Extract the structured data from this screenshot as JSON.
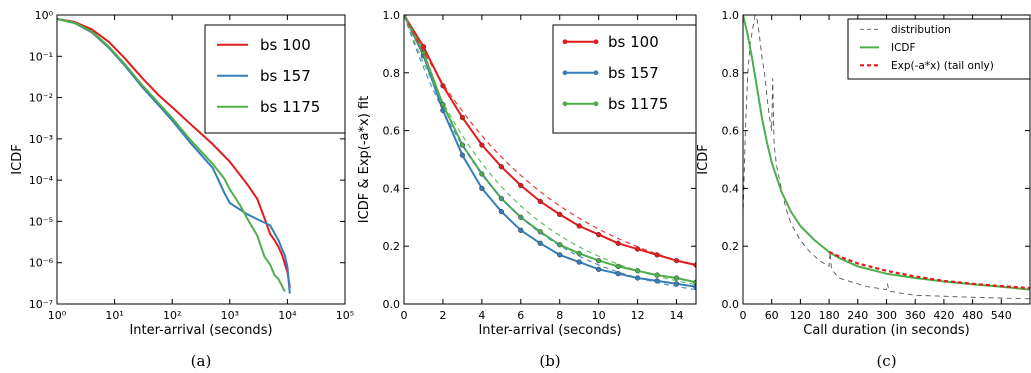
{
  "chart_data": [
    {
      "type": "line",
      "caption": "(a)",
      "xlabel": "Inter-arrival (seconds)",
      "ylabel": "ICDF",
      "xscale": "log",
      "yscale": "log",
      "xlim": [
        1,
        100000
      ],
      "ylim": [
        1e-07,
        1
      ],
      "xticks": [
        {
          "v": 1,
          "t": "10⁰"
        },
        {
          "v": 10,
          "t": "10¹"
        },
        {
          "v": 100,
          "t": "10²"
        },
        {
          "v": 1000,
          "t": "10³"
        },
        {
          "v": 10000,
          "t": "10⁴"
        },
        {
          "v": 100000,
          "t": "10⁵"
        }
      ],
      "yticks": [
        {
          "v": 1e-07,
          "t": "10⁻⁷"
        },
        {
          "v": 1e-06,
          "t": "10⁻⁶"
        },
        {
          "v": 1e-05,
          "t": "10⁻⁵"
        },
        {
          "v": 0.0001,
          "t": "10⁻⁴"
        },
        {
          "v": 0.001,
          "t": "10⁻³"
        },
        {
          "v": 0.01,
          "t": "10⁻²"
        },
        {
          "v": 0.1,
          "t": "10⁻¹"
        },
        {
          "v": 1,
          "t": "10⁰"
        }
      ],
      "legend": "top-right",
      "series": [
        {
          "name": "bs 100",
          "color": "#e41a1c",
          "x": [
            1,
            2,
            4,
            8,
            15,
            30,
            60,
            100,
            200,
            500,
            1000,
            2000,
            3000,
            4000,
            5000,
            6000,
            7000,
            8000,
            10000,
            11000
          ],
          "y": [
            0.8,
            0.68,
            0.45,
            0.22,
            0.09,
            0.03,
            0.011,
            0.0058,
            0.0024,
            0.00075,
            0.00028,
            8e-05,
            3.5e-05,
            1.2e-05,
            5e-06,
            3.5e-06,
            2.4e-06,
            1.6e-06,
            6e-07,
            2.5e-07
          ]
        },
        {
          "name": "bs 157",
          "color": "#377eb8",
          "x": [
            1,
            2,
            4,
            8,
            15,
            30,
            60,
            100,
            200,
            500,
            600,
            800,
            1000,
            2000,
            5000,
            7000,
            8000,
            9000,
            10000,
            11000
          ],
          "y": [
            0.8,
            0.64,
            0.38,
            0.16,
            0.06,
            0.018,
            0.0062,
            0.0028,
            0.00085,
            0.0002,
            0.00012,
            5e-05,
            2.8e-05,
            1.5e-05,
            8e-06,
            3.5e-06,
            2.2e-06,
            1.5e-06,
            8e-07,
            1.8e-07
          ]
        },
        {
          "name": "bs 1175",
          "color": "#4daf4a",
          "x": [
            1,
            2,
            4,
            8,
            15,
            30,
            60,
            100,
            200,
            500,
            800,
            1000,
            1500,
            2000,
            3000,
            4000,
            5000,
            6000,
            7000,
            9000
          ],
          "y": [
            0.8,
            0.65,
            0.4,
            0.17,
            0.065,
            0.02,
            0.007,
            0.0032,
            0.001,
            0.00025,
            0.00011,
            6e-05,
            2.5e-05,
            1.2e-05,
            4.5e-06,
            1.4e-06,
            9e-07,
            5e-07,
            4e-07,
            2e-07
          ]
        }
      ]
    },
    {
      "type": "line",
      "caption": "(b)",
      "xlabel": "Inter-arrival (seconds)",
      "ylabel": "ICDF & Exp(-a*x) fit",
      "xlim": [
        0,
        15
      ],
      "ylim": [
        0,
        1
      ],
      "xticks": [
        {
          "v": 0,
          "t": "0"
        },
        {
          "v": 2,
          "t": "2"
        },
        {
          "v": 4,
          "t": "4"
        },
        {
          "v": 6,
          "t": "6"
        },
        {
          "v": 8,
          "t": "8"
        },
        {
          "v": 10,
          "t": "10"
        },
        {
          "v": 12,
          "t": "12"
        },
        {
          "v": 14,
          "t": "14"
        }
      ],
      "yticks": [
        {
          "v": 0,
          "t": "0.0"
        },
        {
          "v": 0.2,
          "t": "0.2"
        },
        {
          "v": 0.4,
          "t": "0.4"
        },
        {
          "v": 0.6,
          "t": "0.6"
        },
        {
          "v": 0.8,
          "t": "0.8"
        },
        {
          "v": 1.0,
          "t": "1.0"
        }
      ],
      "legend": "top-right",
      "series": [
        {
          "name": "bs 100",
          "color": "#e41a1c",
          "markers": true,
          "x": [
            0,
            1,
            2,
            3,
            4,
            5,
            6,
            7,
            8,
            9,
            10,
            11,
            12,
            13,
            14,
            15
          ],
          "y": [
            1.0,
            0.89,
            0.755,
            0.645,
            0.55,
            0.475,
            0.41,
            0.355,
            0.31,
            0.27,
            0.24,
            0.21,
            0.19,
            0.17,
            0.15,
            0.135
          ]
        },
        {
          "name": "bs 157",
          "color": "#377eb8",
          "markers": true,
          "x": [
            0,
            1,
            2,
            3,
            4,
            5,
            6,
            7,
            8,
            9,
            10,
            11,
            12,
            13,
            14,
            15
          ],
          "y": [
            1.0,
            0.86,
            0.67,
            0.515,
            0.4,
            0.32,
            0.255,
            0.21,
            0.17,
            0.145,
            0.12,
            0.105,
            0.09,
            0.08,
            0.07,
            0.06
          ]
        },
        {
          "name": "bs 1175",
          "color": "#4daf4a",
          "markers": true,
          "x": [
            0,
            1,
            2,
            3,
            4,
            5,
            6,
            7,
            8,
            9,
            10,
            11,
            12,
            13,
            14,
            15
          ],
          "y": [
            1.0,
            0.87,
            0.69,
            0.55,
            0.45,
            0.365,
            0.3,
            0.25,
            0.205,
            0.175,
            0.15,
            0.13,
            0.115,
            0.1,
            0.09,
            0.075
          ]
        },
        {
          "color": "#e41a1c",
          "dashed": true,
          "decay": 0.135
        },
        {
          "color": "#377eb8",
          "dashed": true,
          "decay": 0.2
        },
        {
          "color": "#4daf4a",
          "dashed": true,
          "decay": 0.18
        }
      ]
    },
    {
      "type": "line",
      "caption": "(c)",
      "xlabel": "Call duration (in seconds)",
      "ylabel": "ICDF",
      "xlim": [
        0,
        600
      ],
      "ylim": [
        0,
        1
      ],
      "xticks": [
        {
          "v": 0,
          "t": "0"
        },
        {
          "v": 60,
          "t": "60"
        },
        {
          "v": 120,
          "t": "120"
        },
        {
          "v": 180,
          "t": "180"
        },
        {
          "v": 240,
          "t": "240"
        },
        {
          "v": 300,
          "t": "300"
        },
        {
          "v": 360,
          "t": "360"
        },
        {
          "v": 420,
          "t": "420"
        },
        {
          "v": 480,
          "t": "480"
        },
        {
          "v": 540,
          "t": "540"
        }
      ],
      "yticks": [
        {
          "v": 0,
          "t": "0.0"
        },
        {
          "v": 0.2,
          "t": "0.2"
        },
        {
          "v": 0.4,
          "t": "0.4"
        },
        {
          "v": 0.6,
          "t": "0.6"
        },
        {
          "v": 0.8,
          "t": "0.8"
        },
        {
          "v": 1.0,
          "t": "1.0"
        }
      ],
      "legend": "top-right",
      "series": [
        {
          "name": "distribution",
          "color": "#555555",
          "dashed": "thin",
          "x": [
            0,
            5,
            10,
            15,
            20,
            25,
            30,
            35,
            40,
            45,
            50,
            55,
            60,
            62,
            65,
            70,
            80,
            90,
            100,
            120,
            140,
            160,
            180,
            182,
            185,
            190,
            200,
            220,
            240,
            260,
            280,
            300,
            302,
            305,
            320,
            340,
            360,
            400,
            450,
            500,
            550,
            600
          ],
          "y": [
            0.3,
            0.6,
            0.8,
            0.9,
            0.95,
            1.0,
            0.98,
            0.92,
            0.85,
            0.8,
            0.72,
            0.65,
            0.6,
            0.78,
            0.55,
            0.48,
            0.4,
            0.33,
            0.28,
            0.22,
            0.18,
            0.15,
            0.13,
            0.18,
            0.12,
            0.11,
            0.09,
            0.08,
            0.07,
            0.06,
            0.055,
            0.05,
            0.07,
            0.045,
            0.04,
            0.035,
            0.03,
            0.028,
            0.025,
            0.022,
            0.02,
            0.018
          ]
        },
        {
          "name": "ICDF",
          "color": "#4daf4a",
          "x": [
            0,
            10,
            20,
            30,
            40,
            50,
            60,
            80,
            100,
            120,
            150,
            180,
            200,
            240,
            300,
            360,
            420,
            480,
            540,
            600
          ],
          "y": [
            1.0,
            0.93,
            0.84,
            0.74,
            0.64,
            0.56,
            0.49,
            0.39,
            0.32,
            0.27,
            0.22,
            0.18,
            0.16,
            0.13,
            0.105,
            0.09,
            0.078,
            0.068,
            0.06,
            0.05
          ]
        },
        {
          "name": "Exp(-a*x) (tail only)",
          "color": "#e41a1c",
          "dashed": "thick",
          "x": [
            180,
            200,
            240,
            300,
            360,
            420,
            480,
            540,
            600
          ],
          "y": [
            0.18,
            0.165,
            0.14,
            0.115,
            0.095,
            0.08,
            0.07,
            0.062,
            0.055
          ]
        }
      ]
    }
  ]
}
